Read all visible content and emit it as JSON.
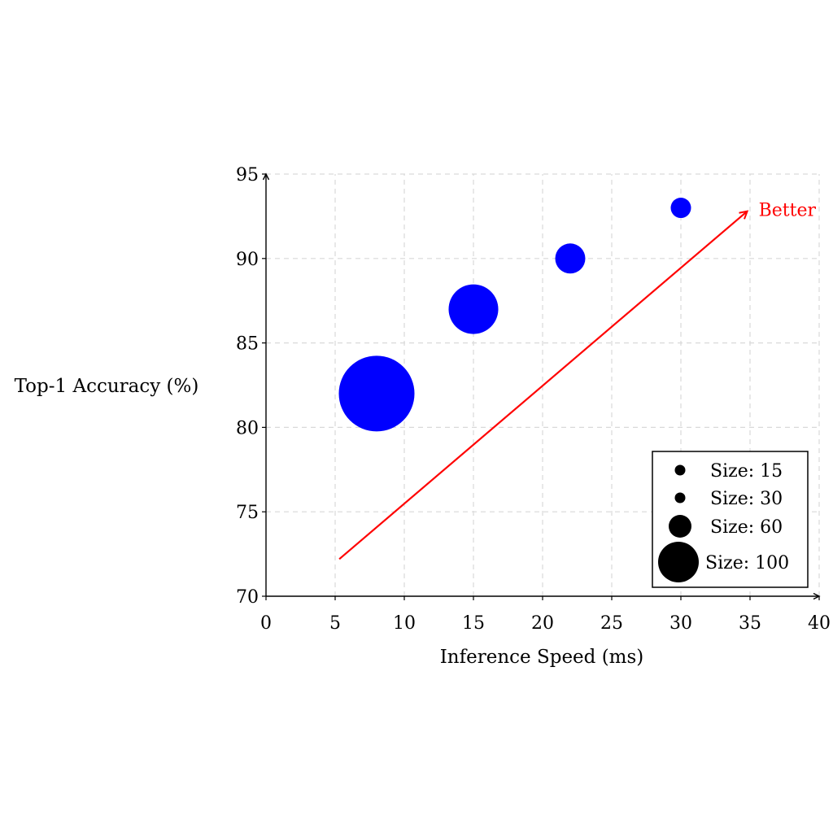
{
  "chart_data": {
    "type": "scatter",
    "xlabel": "Inference Speed (ms)",
    "ylabel": "Top-1 Accuracy (%)",
    "xlim": [
      0,
      40
    ],
    "ylim": [
      70,
      95
    ],
    "xticks": [
      "0",
      "5",
      "10",
      "15",
      "20",
      "25",
      "30",
      "35",
      "40"
    ],
    "yticks": [
      "70",
      "75",
      "80",
      "85",
      "90",
      "95"
    ],
    "grid": true,
    "grid_style": "dashed",
    "marker_color": "#0000ff",
    "points": [
      {
        "x": 8,
        "y": 82,
        "size": 100
      },
      {
        "x": 15,
        "y": 87,
        "size": 60
      },
      {
        "x": 22,
        "y": 90,
        "size": 30
      },
      {
        "x": 30,
        "y": 93,
        "size": 15
      }
    ],
    "arrow": {
      "from": [
        5.3,
        72.2
      ],
      "to": [
        34.8,
        92.8
      ],
      "color": "#ff0000",
      "label": "Better"
    },
    "legend": {
      "placement": "bottom-right",
      "entries": [
        {
          "label": "Size: 15",
          "size": 15
        },
        {
          "label": "Size: 30",
          "size": 30
        },
        {
          "label": "Size: 60",
          "size": 60
        },
        {
          "label": "Size: 100",
          "size": 100
        }
      ]
    }
  }
}
